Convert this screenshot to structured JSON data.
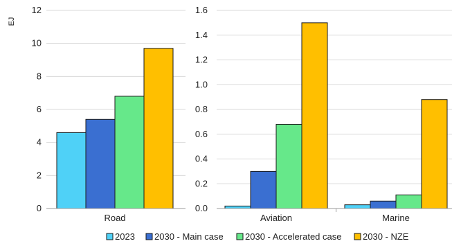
{
  "chart_data": {
    "type": "bar",
    "ylabel": "EJ",
    "legend_position": "bottom",
    "grid": true,
    "series": [
      {
        "name": "2023",
        "color": "#4fd1f7"
      },
      {
        "name": "2030 - Main case",
        "color": "#3a6fd1"
      },
      {
        "name": "2030 - Accelerated case",
        "color": "#66e88a"
      },
      {
        "name": "2030 - NZE",
        "color": "#ffbf00"
      }
    ],
    "panels": [
      {
        "categories": [
          "Road"
        ],
        "ylim": [
          0,
          12
        ],
        "yticks": [
          "0",
          "2",
          "4",
          "6",
          "8",
          "10",
          "12"
        ],
        "values": [
          [
            4.6,
            5.4,
            6.8,
            9.7
          ]
        ]
      },
      {
        "categories": [
          "Aviation",
          "Marine"
        ],
        "ylim": [
          0,
          1.6
        ],
        "yticks": [
          "0.0",
          "0.2",
          "0.4",
          "0.6",
          "0.8",
          "1.0",
          "1.2",
          "1.4",
          "1.6"
        ],
        "values": [
          [
            0.02,
            0.3,
            0.68,
            1.5
          ],
          [
            0.03,
            0.06,
            0.11,
            0.88
          ]
        ]
      }
    ]
  }
}
